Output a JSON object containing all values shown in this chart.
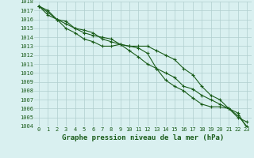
{
  "x": [
    0,
    1,
    2,
    3,
    4,
    5,
    6,
    7,
    8,
    9,
    10,
    11,
    12,
    13,
    14,
    15,
    16,
    17,
    18,
    19,
    20,
    21,
    22,
    23
  ],
  "series1": [
    1017.5,
    1017.0,
    1016.0,
    1015.8,
    1015.0,
    1014.5,
    1014.2,
    1014.0,
    1013.8,
    1013.2,
    1013.0,
    1013.0,
    1013.0,
    1012.5,
    1012.0,
    1011.5,
    1010.5,
    1009.8,
    1008.5,
    1007.5,
    1007.0,
    1006.0,
    1005.0,
    1004.5
  ],
  "series2": [
    1017.5,
    1016.5,
    1016.0,
    1015.5,
    1015.0,
    1014.8,
    1014.5,
    1013.8,
    1013.5,
    1013.2,
    1012.5,
    1011.8,
    1011.0,
    1010.5,
    1010.0,
    1009.5,
    1008.5,
    1008.2,
    1007.5,
    1007.0,
    1006.5,
    1006.0,
    1005.2,
    1004.0
  ],
  "series3": [
    1017.5,
    1016.8,
    1016.0,
    1015.0,
    1014.5,
    1013.8,
    1013.5,
    1013.0,
    1013.0,
    1013.2,
    1013.0,
    1012.8,
    1012.2,
    1010.5,
    1009.2,
    1008.5,
    1008.0,
    1007.2,
    1006.5,
    1006.2,
    1006.2,
    1006.0,
    1005.5,
    1003.8
  ],
  "ylim": [
    1004,
    1018
  ],
  "yticks": [
    1004,
    1005,
    1006,
    1007,
    1008,
    1009,
    1010,
    1011,
    1012,
    1013,
    1014,
    1015,
    1016,
    1017,
    1018
  ],
  "xticks": [
    0,
    1,
    2,
    3,
    4,
    5,
    6,
    7,
    8,
    9,
    10,
    11,
    12,
    13,
    14,
    15,
    16,
    17,
    18,
    19,
    20,
    21,
    22,
    23
  ],
  "xlabel": "Graphe pression niveau de la mer (hPa)",
  "line_color": "#1a5c1a",
  "bg_color": "#d9f0f0",
  "grid_color": "#b0cece",
  "marker": "+",
  "markersize": 3,
  "linewidth": 0.8,
  "xlabel_fontsize": 6.5,
  "tick_fontsize": 5.0
}
